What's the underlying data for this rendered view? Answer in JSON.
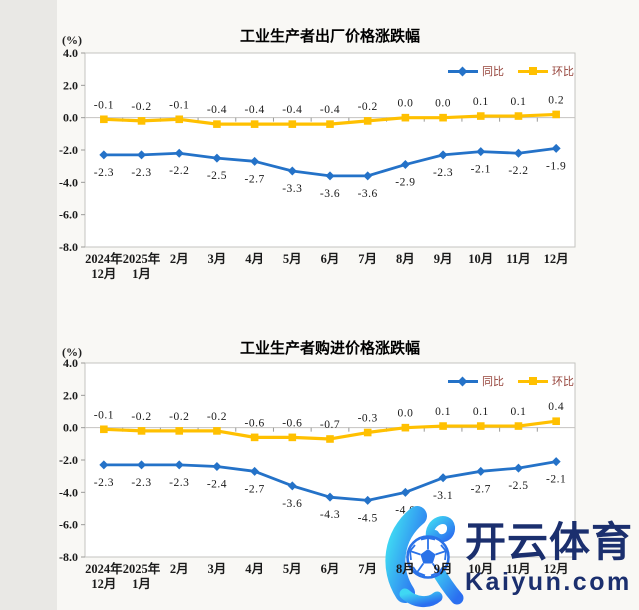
{
  "page": {
    "background": "#f9f8f5",
    "left_margin_color": "#e9e8e5"
  },
  "charts": [
    {
      "title": "工业生产者出厂价格涨跌幅",
      "unit_label": "(%)",
      "legend": [
        {
          "label": "同比",
          "color": "#2472c8",
          "marker": "diamond"
        },
        {
          "label": "环比",
          "color": "#ffc000",
          "marker": "square"
        }
      ],
      "chart_data": {
        "type": "line",
        "categories": [
          "2024年\n12月",
          "2025年\n1月",
          "2月",
          "3月",
          "4月",
          "5月",
          "6月",
          "7月",
          "8月",
          "9月",
          "10月",
          "11月",
          "12月"
        ],
        "series": [
          {
            "name": "同比",
            "color": "#2472c8",
            "marker": "diamond",
            "values": [
              -2.3,
              -2.3,
              -2.2,
              -2.5,
              -2.7,
              -3.3,
              -3.6,
              -3.6,
              -2.9,
              -2.3,
              -2.1,
              -2.2,
              -1.9
            ]
          },
          {
            "name": "环比",
            "color": "#ffc000",
            "marker": "square",
            "values": [
              -0.1,
              -0.2,
              -0.1,
              -0.4,
              -0.4,
              -0.4,
              -0.4,
              -0.2,
              0.0,
              0.0,
              0.1,
              0.1,
              0.2
            ]
          }
        ],
        "ylim": [
          -8.0,
          4.0
        ],
        "yticks": [
          4.0,
          2.0,
          0.0,
          -2.0,
          -4.0,
          -6.0,
          -8.0
        ],
        "grid": false,
        "legend_position": "top-right",
        "data_labels": true
      }
    },
    {
      "title": "工业生产者购进价格涨跌幅",
      "unit_label": "(%)",
      "legend": [
        {
          "label": "同比",
          "color": "#2472c8",
          "marker": "diamond"
        },
        {
          "label": "环比",
          "color": "#ffc000",
          "marker": "square"
        }
      ],
      "chart_data": {
        "type": "line",
        "categories": [
          "2024年\n12月",
          "2025年\n1月",
          "2月",
          "3月",
          "4月",
          "5月",
          "6月",
          "7月",
          "8月",
          "9月",
          "10月",
          "11月",
          "12月"
        ],
        "series": [
          {
            "name": "同比",
            "color": "#2472c8",
            "marker": "diamond",
            "values": [
              -2.3,
              -2.3,
              -2.3,
              -2.4,
              -2.7,
              -3.6,
              -4.3,
              -4.5,
              -4.0,
              -3.1,
              -2.7,
              -2.5,
              -2.1
            ]
          },
          {
            "name": "环比",
            "color": "#ffc000",
            "marker": "square",
            "values": [
              -0.1,
              -0.2,
              -0.2,
              -0.2,
              -0.6,
              -0.6,
              -0.7,
              -0.3,
              0.0,
              0.1,
              0.1,
              0.1,
              0.4
            ]
          }
        ],
        "ylim": [
          -8.0,
          4.0
        ],
        "yticks": [
          4.0,
          2.0,
          0.0,
          -2.0,
          -4.0,
          -6.0,
          -8.0
        ],
        "grid": false,
        "legend_position": "top-right",
        "data_labels": true
      }
    }
  ],
  "colors": {
    "tongbi_line": "#2472c8",
    "huanbi_line": "#ffc000",
    "plot_border": "#c4c3c0",
    "axis_tick": "#9a9a98",
    "label_text": "#1a1a1a",
    "legend_text": "#96443b"
  },
  "watermark": {
    "brand_text": "开云体育",
    "domain_text": "Kaiyun.com",
    "logo": "kaiyun-k-football-logo",
    "text_color": "#1b2f6e",
    "gradient_start": "#3fd7f3",
    "gradient_end": "#2b6ff0",
    "ball_color": "#2a72e8"
  }
}
